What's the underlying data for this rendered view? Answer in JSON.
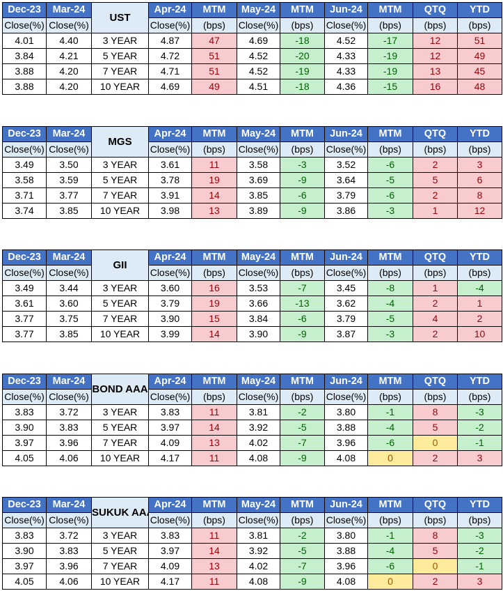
{
  "headers": {
    "row1": [
      "Dec-23",
      "Mar-24",
      "Apr-24",
      "MTM",
      "May-24",
      "MTM",
      "Jun-24",
      "MTM",
      "QTQ",
      "YTD"
    ],
    "row2": [
      "Close(%)",
      "Close(%)",
      "Close(%)",
      "(bps)",
      "Close(%)",
      "(bps)",
      "Close(%)",
      "(bps)",
      "(bps)",
      "(bps)"
    ]
  },
  "colors": {
    "header_blue": "#4472C4",
    "subheader_light_blue": "#DDEBF7",
    "increase_red": "#F8CBCE",
    "decrease_green": "#C6EFCE",
    "unchanged_yellow": "#FFEB9C"
  },
  "tables": [
    {
      "label": "UST",
      "rows": [
        [
          "4.01",
          "4.40",
          "3 YEAR",
          "4.87",
          "47",
          "4.69",
          "-18",
          "4.52",
          "-17",
          "12",
          "51"
        ],
        [
          "3.84",
          "4.21",
          "5 YEAR",
          "4.72",
          "51",
          "4.52",
          "-20",
          "4.33",
          "-19",
          "12",
          "49"
        ],
        [
          "3.88",
          "4.20",
          "7 YEAR",
          "4.71",
          "51",
          "4.52",
          "-19",
          "4.33",
          "-19",
          "13",
          "45"
        ],
        [
          "3.88",
          "4.20",
          "10 YEAR",
          "4.69",
          "49",
          "4.51",
          "-18",
          "4.36",
          "-15",
          "16",
          "48"
        ]
      ]
    },
    {
      "label": "MGS",
      "rows": [
        [
          "3.49",
          "3.50",
          "3 YEAR",
          "3.61",
          "11",
          "3.58",
          "-3",
          "3.52",
          "-6",
          "2",
          "3"
        ],
        [
          "3.58",
          "3.59",
          "5 YEAR",
          "3.78",
          "19",
          "3.69",
          "-9",
          "3.64",
          "-5",
          "5",
          "6"
        ],
        [
          "3.71",
          "3.77",
          "7 YEAR",
          "3.91",
          "14",
          "3.85",
          "-6",
          "3.79",
          "-6",
          "2",
          "8"
        ],
        [
          "3.74",
          "3.85",
          "10 YEAR",
          "3.98",
          "13",
          "3.89",
          "-9",
          "3.86",
          "-3",
          "1",
          "12"
        ]
      ]
    },
    {
      "label": "GII",
      "rows": [
        [
          "3.49",
          "3.44",
          "3 YEAR",
          "3.60",
          "16",
          "3.53",
          "-7",
          "3.45",
          "-8",
          "1",
          "-4"
        ],
        [
          "3.61",
          "3.60",
          "5 YEAR",
          "3.79",
          "19",
          "3.66",
          "-13",
          "3.62",
          "-4",
          "2",
          "1"
        ],
        [
          "3.77",
          "3.75",
          "7 YEAR",
          "3.90",
          "15",
          "3.84",
          "-6",
          "3.79",
          "-5",
          "4",
          "2"
        ],
        [
          "3.77",
          "3.85",
          "10 YEAR",
          "3.99",
          "14",
          "3.90",
          "-9",
          "3.87",
          "-3",
          "2",
          "10"
        ]
      ]
    },
    {
      "label": "BOND AAA",
      "rows": [
        [
          "3.83",
          "3.72",
          "3 YEAR",
          "3.83",
          "11",
          "3.81",
          "-2",
          "3.80",
          "-1",
          "8",
          "-3"
        ],
        [
          "3.90",
          "3.83",
          "5 YEAR",
          "3.97",
          "14",
          "3.92",
          "-5",
          "3.88",
          "-4",
          "5",
          "-2"
        ],
        [
          "3.97",
          "3.96",
          "7 YEAR",
          "4.09",
          "13",
          "4.02",
          "-7",
          "3.96",
          "-6",
          "0",
          "-1"
        ],
        [
          "4.05",
          "4.06",
          "10 YEAR",
          "4.17",
          "11",
          "4.08",
          "-9",
          "4.08",
          "0",
          "2",
          "3"
        ]
      ]
    },
    {
      "label": "SUKUK AAA",
      "rows": [
        [
          "3.83",
          "3.72",
          "3 YEAR",
          "3.83",
          "11",
          "3.81",
          "-2",
          "3.80",
          "-1",
          "8",
          "-3"
        ],
        [
          "3.90",
          "3.83",
          "5 YEAR",
          "3.97",
          "14",
          "3.92",
          "-5",
          "3.88",
          "-4",
          "5",
          "-2"
        ],
        [
          "3.97",
          "3.96",
          "7 YEAR",
          "4.09",
          "13",
          "4.02",
          "-7",
          "3.96",
          "-6",
          "0",
          "-1"
        ],
        [
          "4.05",
          "4.06",
          "10 YEAR",
          "4.17",
          "11",
          "4.08",
          "-9",
          "4.08",
          "0",
          "2",
          "3"
        ]
      ]
    }
  ]
}
